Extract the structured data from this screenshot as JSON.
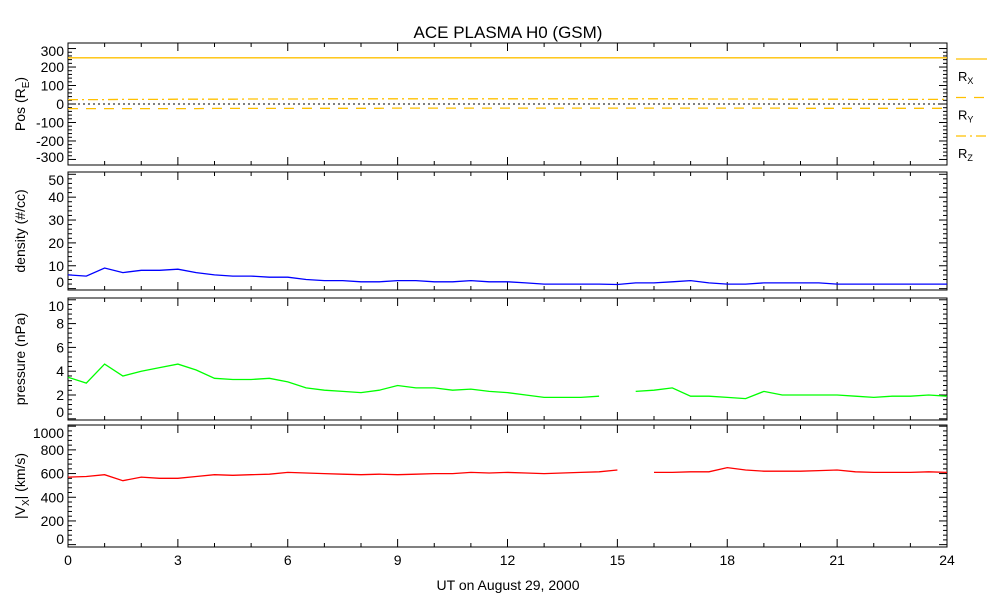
{
  "chart_data": {
    "type": "line",
    "title": "ACE PLASMA H0 (GSM)",
    "xlabel": "UT on August 29, 2000",
    "xlim": [
      0,
      24
    ],
    "xticks": [
      0,
      3,
      6,
      9,
      12,
      15,
      18,
      21,
      24
    ],
    "x": [
      0,
      0.5,
      1,
      1.5,
      2,
      2.5,
      3,
      3.5,
      4,
      4.5,
      5,
      5.5,
      6,
      6.5,
      7,
      7.5,
      8,
      8.5,
      9,
      9.5,
      10,
      10.5,
      11,
      11.5,
      12,
      12.5,
      13,
      13.5,
      14,
      14.5,
      15,
      15.5,
      16,
      16.5,
      17,
      17.5,
      18,
      18.5,
      19,
      19.5,
      20,
      20.5,
      21,
      21.5,
      22,
      22.5,
      23,
      23.5,
      24
    ],
    "panels": [
      {
        "name": "position",
        "ylabel": "Pos (R",
        "ylabel_sub": "E",
        "ylabel_post": ")",
        "ylim": [
          -330,
          330
        ],
        "yticks": [
          300,
          200,
          100,
          0,
          -100,
          -200,
          -300
        ],
        "zero_line": true,
        "series": [
          {
            "name": "R",
            "sub": "X",
            "color": "#ffc000",
            "dash": "",
            "values": [
              250,
              250,
              250,
              250,
              250,
              250,
              250,
              250,
              250,
              250,
              250,
              250,
              250,
              250,
              250,
              250,
              250,
              250,
              250,
              250,
              250,
              250,
              250,
              250,
              250,
              250,
              250,
              250,
              250,
              250,
              250,
              250,
              250,
              250,
              250,
              250,
              250,
              250,
              250,
              250,
              250,
              250,
              250,
              250,
              250,
              250,
              250,
              250,
              250
            ]
          },
          {
            "name": "R",
            "sub": "Y",
            "color": "#ffc000",
            "dash": "10,8",
            "values": [
              -25,
              -25,
              -25,
              -25,
              -25,
              -25,
              -25,
              -25,
              -24,
              -24,
              -24,
              -24,
              -24,
              -23,
              -23,
              -23,
              -23,
              -23,
              -22,
              -22,
              -22,
              -22,
              -22,
              -22,
              -22,
              -22,
              -22,
              -22,
              -22,
              -22,
              -22,
              -22,
              -22,
              -22,
              -22,
              -22,
              -22,
              -22,
              -22,
              -22,
              -23,
              -23,
              -23,
              -23,
              -23,
              -23,
              -23,
              -23,
              -23
            ]
          },
          {
            "name": "R",
            "sub": "Z",
            "color": "#ffc000",
            "dash": "10,4,2,4",
            "values": [
              24,
              24,
              24,
              25,
              25,
              25,
              26,
              26,
              26,
              26,
              27,
              27,
              27,
              27,
              28,
              28,
              28,
              28,
              28,
              28,
              28,
              28,
              28,
              28,
              28,
              28,
              28,
              28,
              28,
              28,
              28,
              28,
              28,
              28,
              28,
              27,
              27,
              27,
              27,
              26,
              26,
              26,
              26,
              25,
              25,
              25,
              25,
              25,
              25
            ]
          }
        ]
      },
      {
        "name": "density",
        "ylabel": "density (#/cc)",
        "ylim": [
          -0.6,
          51
        ],
        "yticks": [
          50,
          40,
          30,
          20,
          10,
          0
        ],
        "series": [
          {
            "name": "density",
            "color": "#0000ff",
            "values": [
              6,
              5.5,
              9,
              7,
              8,
              8,
              8.5,
              7,
              6,
              5.5,
              5.5,
              5,
              5,
              4,
              3.5,
              3.5,
              3,
              3,
              3.5,
              3.5,
              3,
              3,
              3.5,
              3,
              3,
              2.5,
              2,
              2,
              2,
              2,
              1.8,
              2.5,
              2.5,
              3,
              3.5,
              2.5,
              2,
              2,
              2.5,
              2.5,
              2.5,
              2.5,
              2,
              2,
              2,
              2,
              2,
              2,
              2
            ]
          }
        ]
      },
      {
        "name": "pressure",
        "ylabel": "pressure (nPa)",
        "ylim": [
          -0.1,
          10.15
        ],
        "yticks": [
          10,
          8,
          6,
          4,
          2,
          0
        ],
        "series": [
          {
            "name": "pressure",
            "color": "#00ff00",
            "values": [
              3.5,
              3,
              4.6,
              3.6,
              4,
              4.3,
              4.6,
              4.1,
              3.4,
              3.3,
              3.3,
              3.4,
              3.1,
              2.6,
              2.4,
              2.3,
              2.2,
              2.4,
              2.8,
              2.6,
              2.6,
              2.4,
              2.5,
              2.3,
              2.2,
              2,
              1.8,
              1.8,
              1.8,
              1.9,
              null,
              2.3,
              2.4,
              2.6,
              1.9,
              1.9,
              1.8,
              1.7,
              2.3,
              2,
              2,
              2,
              2,
              1.9,
              1.8,
              1.9,
              1.9,
              2,
              1.9
            ]
          }
        ]
      },
      {
        "name": "velocity",
        "ylabel": "|V",
        "ylabel_sub": "X",
        "ylabel_post": "| (km/s)",
        "ylim": [
          -20,
          1010
        ],
        "yticks": [
          1000,
          800,
          600,
          400,
          200,
          0
        ],
        "series": [
          {
            "name": "|Vx|",
            "color": "#ff0000",
            "values": [
              570,
              575,
              590,
              540,
              570,
              560,
              560,
              575,
              590,
              585,
              590,
              595,
              610,
              605,
              600,
              595,
              590,
              595,
              590,
              595,
              600,
              600,
              610,
              605,
              610,
              605,
              600,
              605,
              610,
              615,
              630,
              null,
              610,
              610,
              615,
              615,
              650,
              630,
              620,
              620,
              620,
              625,
              630,
              615,
              610,
              610,
              610,
              615,
              610
            ]
          }
        ]
      }
    ]
  }
}
